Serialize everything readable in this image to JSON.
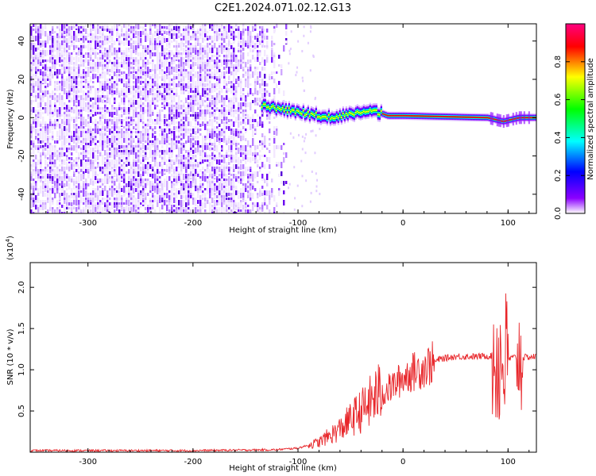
{
  "figure_title": "C2E1.2024.071.02.12.G13",
  "chart_data": [
    {
      "type": "heatmap",
      "title": "",
      "xlabel": "Height of straight line (km)",
      "ylabel": "Frequency (Hz)",
      "xlim": [
        -355,
        127
      ],
      "ylim": [
        -50,
        49
      ],
      "xticks": [
        -300,
        -200,
        -100,
        0,
        100
      ],
      "yticks": [
        -40,
        -20,
        0,
        20,
        40
      ],
      "colorbar": {
        "label": "Normalized spectral amplitude",
        "range": [
          0.0,
          1.0
        ],
        "ticks": [
          "0.0",
          "0.2",
          "0.4",
          "0.6",
          "0.8"
        ],
        "colors": [
          "#ffffff",
          "#8b00ff",
          "#0000ff",
          "#00ffff",
          "#00ff00",
          "#ffff00",
          "#ff0000",
          "#ff0080"
        ]
      },
      "noise_region_x": [
        -355,
        -110
      ],
      "signal_band": [
        {
          "x": -135,
          "freq": 6
        },
        {
          "x": -110,
          "freq": 4
        },
        {
          "x": -90,
          "freq": 2
        },
        {
          "x": -70,
          "freq": 0
        },
        {
          "x": -50,
          "freq": 2
        },
        {
          "x": -30,
          "freq": 4
        },
        {
          "x": -15,
          "freq": 1
        },
        {
          "x": 0,
          "freq": 1
        },
        {
          "x": 80,
          "freq": 0
        },
        {
          "x": 95,
          "freq": -2
        },
        {
          "x": 110,
          "freq": 0
        },
        {
          "x": 127,
          "freq": 0
        }
      ]
    },
    {
      "type": "line",
      "title": "",
      "xlabel": "Height of straight line (km)",
      "ylabel": "SNR (10 * v/v)",
      "y_multiplier": "(x10",
      "y_multiplier_exp": "4",
      "y_multiplier_close": ")",
      "xlim": [
        -355,
        127
      ],
      "ylim": [
        0,
        2.3
      ],
      "xticks": [
        -300,
        -200,
        -100,
        0,
        100
      ],
      "yticks": [
        "0.5",
        "1.0",
        "1.5",
        "2.0"
      ],
      "line_color": "#e8262a",
      "series": [
        {
          "values": [
            {
              "x": -355,
              "y": 0.02
            },
            {
              "x": -200,
              "y": 0.02
            },
            {
              "x": -120,
              "y": 0.03
            },
            {
              "x": -100,
              "y": 0.05
            },
            {
              "x": -80,
              "y": 0.12
            },
            {
              "x": -60,
              "y": 0.28
            },
            {
              "x": -45,
              "y": 0.45
            },
            {
              "x": -35,
              "y": 0.55
            },
            {
              "x": -25,
              "y": 0.7
            },
            {
              "x": -15,
              "y": 0.75
            },
            {
              "x": -5,
              "y": 0.85
            },
            {
              "x": 5,
              "y": 0.95
            },
            {
              "x": 15,
              "y": 1.0
            },
            {
              "x": 25,
              "y": 1.06
            },
            {
              "x": 35,
              "y": 1.13
            },
            {
              "x": 50,
              "y": 1.16
            },
            {
              "x": 70,
              "y": 1.16
            },
            {
              "x": 85,
              "y": 1.17
            },
            {
              "x": 95,
              "y": 1.1
            },
            {
              "x": 105,
              "y": 1.15
            },
            {
              "x": 115,
              "y": 1.15
            },
            {
              "x": 127,
              "y": 1.16
            }
          ]
        }
      ]
    }
  ]
}
